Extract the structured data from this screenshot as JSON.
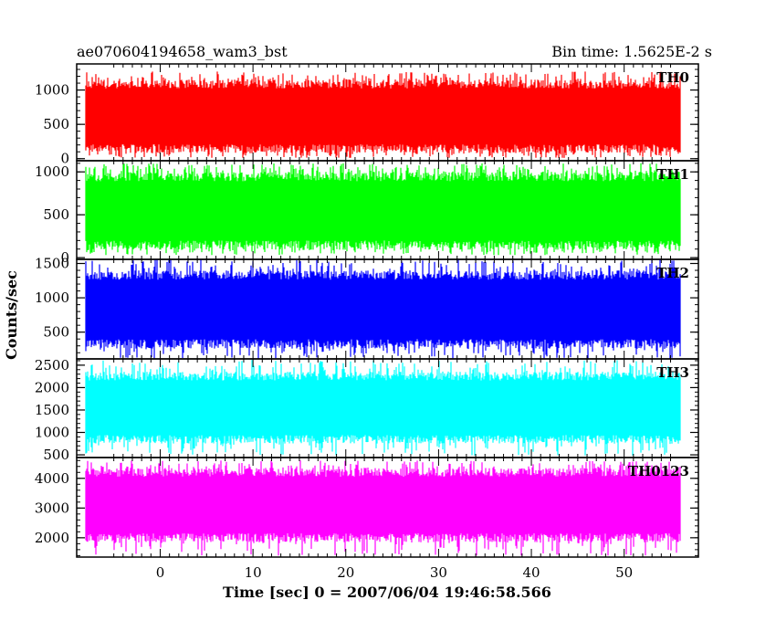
{
  "chart_data": {
    "type": "line",
    "title": "ae070604194658_wam3_bst",
    "subtitle": "Bin time: 1.5625E-2 s",
    "xlabel": "Time [sec] 0 = 2007/06/04 19:46:58.566",
    "ylabel": "Counts/sec",
    "xlim": [
      -9,
      58
    ],
    "x_data_range": [
      -8,
      56
    ],
    "xticks": [
      0,
      10,
      20,
      30,
      40,
      50
    ],
    "panels": [
      {
        "name": "TH0",
        "color": "#ff0000",
        "ylim": [
          -30,
          1380
        ],
        "yticks": [
          0,
          500,
          1000
        ],
        "mean": 560,
        "low": 80,
        "high": 1150,
        "max": 1270,
        "min": 10
      },
      {
        "name": "TH1",
        "color": "#00ff00",
        "ylim": [
          -20,
          1130
        ],
        "yticks": [
          0,
          500,
          1000
        ],
        "mean": 560,
        "low": 90,
        "high": 1000,
        "max": 1100,
        "min": 30
      },
      {
        "name": "TH2",
        "color": "#0000ff",
        "ylim": [
          110,
          1560
        ],
        "yticks": [
          500,
          1000,
          1500
        ],
        "mean": 800,
        "low": 260,
        "high": 1400,
        "max": 1560,
        "min": 110
      },
      {
        "name": "TH3",
        "color": "#00ffff",
        "ylim": [
          440,
          2640
        ],
        "yticks": [
          500,
          1000,
          1500,
          2000,
          2500
        ],
        "mean": 1500,
        "low": 750,
        "high": 2350,
        "max": 2620,
        "min": 480
      },
      {
        "name": "TH0123",
        "color": "#ff00ff",
        "ylim": [
          1350,
          4700
        ],
        "yticks": [
          2000,
          3000,
          4000
        ],
        "mean": 3350,
        "low": 1850,
        "high": 4350,
        "max": 4600,
        "min": 1400
      }
    ]
  }
}
